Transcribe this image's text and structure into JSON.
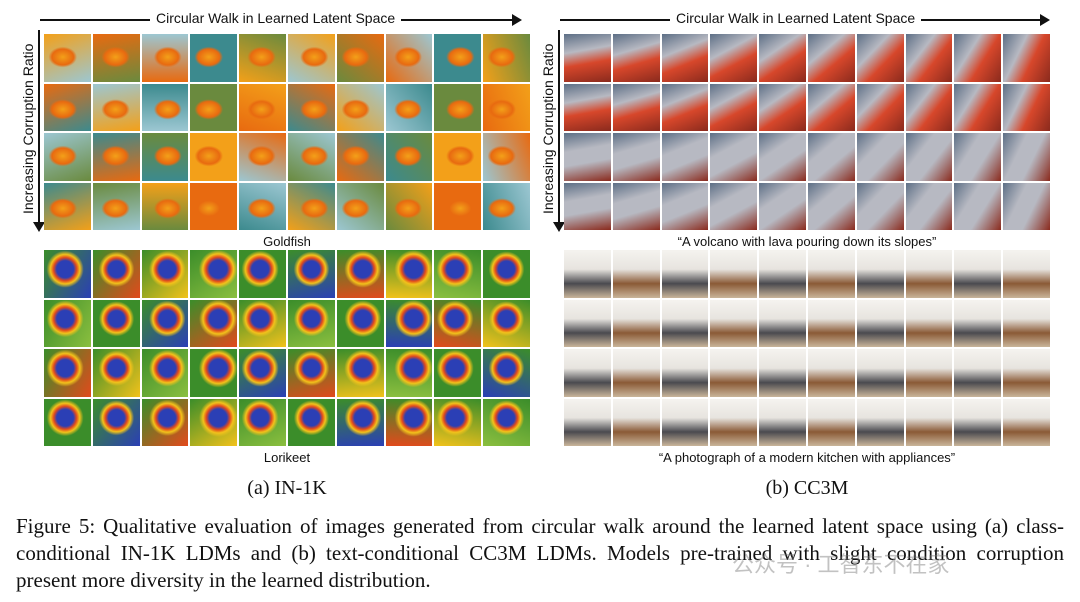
{
  "panel_a": {
    "top_axis_label": "Circular Walk in Learned Latent Space",
    "side_axis_label": "Increasing Corruption Ratio",
    "class_1": "Goldfish",
    "class_2": "Lorikeet",
    "sublabel": "(a) IN-1K",
    "palettes": {
      "goldfish": [
        "#f3a019",
        "#e86a10",
        "#9cc7d2",
        "#3c8a8e",
        "#6a8a3e"
      ],
      "lorikeet": [
        "#3b8d2a",
        "#2b3fb5",
        "#e24a1c",
        "#f2c21b",
        "#8bbf3f"
      ]
    }
  },
  "panel_b": {
    "top_axis_label": "Circular Walk in Learned Latent Space",
    "side_axis_label": "Increasing Corruption Ratio",
    "prompt_1": "“A volcano with lava pouring down its slopes”",
    "prompt_2": "“A photograph of a modern kitchen with appliances”",
    "sublabel": "(b) CC3M",
    "palettes": {
      "volcano": [
        "#d7472b",
        "#8a2a1d",
        "#5d6f86",
        "#b7b9c2",
        "#3b3f52"
      ],
      "kitchen": [
        "#e7e4df",
        "#8a5a36",
        "#4a4a4f",
        "#c9b59a",
        "#f5f3ef"
      ]
    }
  },
  "caption": "Figure 5: Qualitative evaluation of images generated from circular walk around the learned latent space using (a) class-conditional IN-1K LDMs and (b) text-conditional CC3M LDMs. Models pre-trained with slight condition corruption present more diversity in the learned distribution.",
  "watermark": "公众号 · 工智东不在家"
}
